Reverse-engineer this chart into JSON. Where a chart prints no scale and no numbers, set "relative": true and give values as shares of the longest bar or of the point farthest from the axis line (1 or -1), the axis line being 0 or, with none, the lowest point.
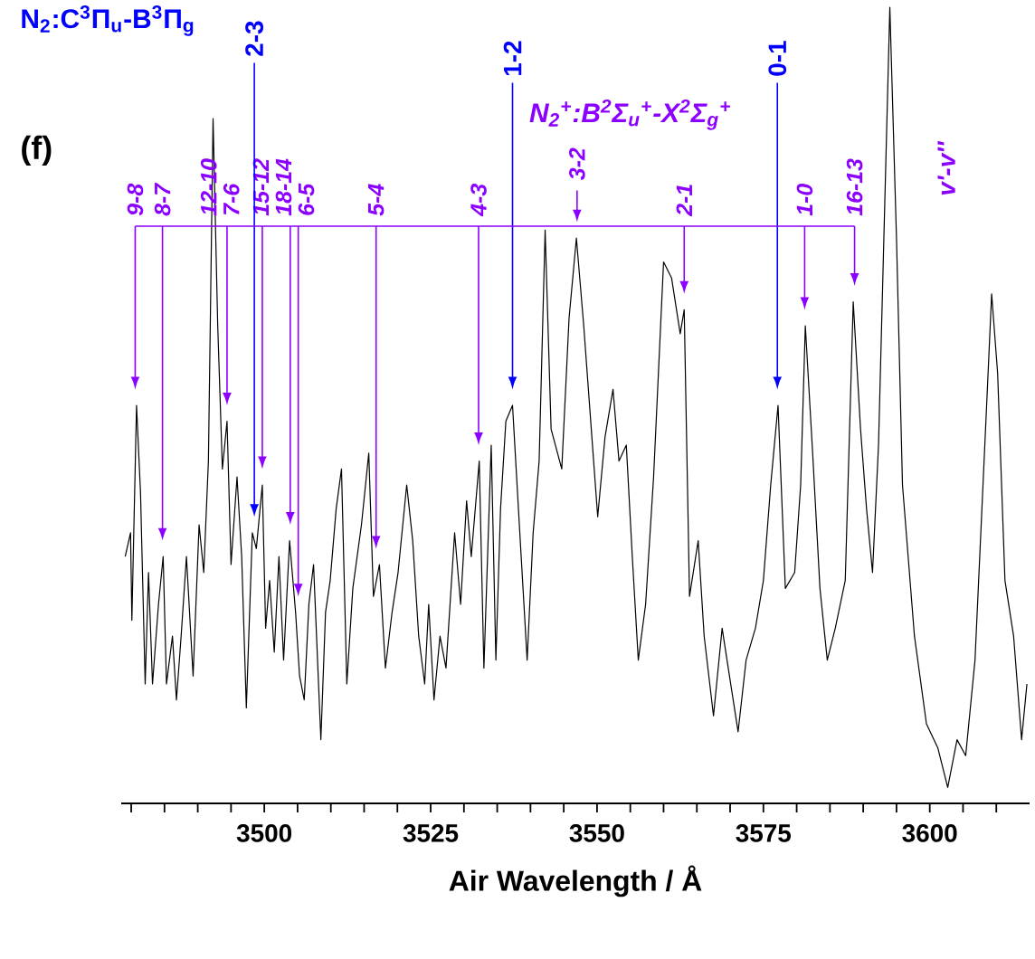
{
  "chart_data": {
    "type": "line",
    "relative": true,
    "xlabel": "Air Wavelength / Å",
    "xlim": [
      3478.5,
      3615
    ],
    "xticks": [
      {
        "value": 3480,
        "label": null
      },
      {
        "value": 3485,
        "label": null
      },
      {
        "value": 3490,
        "label": null
      },
      {
        "value": 3495,
        "label": null
      },
      3500,
      {
        "value": 3505,
        "label": null
      },
      {
        "value": 3510,
        "label": null
      },
      {
        "value": 3515,
        "label": null
      },
      {
        "value": 3520,
        "label": null
      },
      3525,
      {
        "value": 3530,
        "label": null
      },
      {
        "value": 3535,
        "label": null
      },
      {
        "value": 3540,
        "label": null
      },
      {
        "value": 3545,
        "label": null
      },
      3550,
      {
        "value": 3555,
        "label": null
      },
      {
        "value": 3560,
        "label": null
      },
      {
        "value": 3565,
        "label": null
      },
      {
        "value": 3570,
        "label": null
      },
      3575,
      {
        "value": 3580,
        "label": null
      },
      {
        "value": 3585,
        "label": null
      },
      {
        "value": 3590,
        "label": null
      },
      {
        "value": 3595,
        "label": null
      },
      3600,
      {
        "value": 3605,
        "label": null
      },
      {
        "value": 3610,
        "label": null
      }
    ],
    "x": [
      3479.1,
      3479.9,
      3480.1,
      3480.8,
      3481.4,
      3482.1,
      3482.6,
      3483.2,
      3484.1,
      3484.8,
      3485.3,
      3486.2,
      3486.8,
      3487.5,
      3488.3,
      3489.3,
      3490.2,
      3490.9,
      3491.6,
      3492.3,
      3493.0,
      3493.7,
      3494.4,
      3495.0,
      3495.9,
      3496.6,
      3497.3,
      3498.2,
      3498.8,
      3499.7,
      3500.2,
      3500.8,
      3501.5,
      3502.2,
      3502.9,
      3503.8,
      3504.7,
      3505.3,
      3506.0,
      3506.7,
      3507.4,
      3508.5,
      3509.2,
      3509.9,
      3510.8,
      3511.6,
      3512.4,
      3513.3,
      3514.6,
      3515.7,
      3516.4,
      3517.3,
      3518.2,
      3519.2,
      3520.1,
      3521.4,
      3522.3,
      3523.2,
      3524.1,
      3524.7,
      3525.5,
      3526.4,
      3527.3,
      3528.6,
      3529.5,
      3530.4,
      3531.1,
      3532.3,
      3533.0,
      3534.1,
      3534.8,
      3535.5,
      3536.3,
      3537.3,
      3538.6,
      3539.5,
      3540.4,
      3541.3,
      3542.2,
      3543.1,
      3544.7,
      3545.8,
      3546.9,
      3548.0,
      3550.1,
      3551.2,
      3552.4,
      3553.3,
      3554.4,
      3555.3,
      3556.2,
      3557.3,
      3558.5,
      3560.0,
      3561.2,
      3562.5,
      3563.1,
      3563.9,
      3565.2,
      3566.1,
      3567.5,
      3568.8,
      3569.9,
      3571.2,
      3572.4,
      3573.8,
      3575.0,
      3576.1,
      3577.2,
      3578.3,
      3579.7,
      3580.6,
      3581.3,
      3582.4,
      3583.5,
      3584.6,
      3585.8,
      3587.3,
      3588.5,
      3589.6,
      3590.5,
      3591.4,
      3592.3,
      3594.0,
      3595.0,
      3595.9,
      3597.7,
      3599.5,
      3601.2,
      3602.7,
      3604.1,
      3605.4,
      3606.8,
      3608.6,
      3609.3,
      3610.2,
      3611.3,
      3612.6,
      3613.8,
      3614.6
    ],
    "series": [
      {
        "color": "#000000",
        "values": [
          0.31,
          0.34,
          0.23,
          0.5,
          0.39,
          0.15,
          0.29,
          0.15,
          0.25,
          0.31,
          0.15,
          0.21,
          0.13,
          0.21,
          0.31,
          0.16,
          0.35,
          0.29,
          0.43,
          0.86,
          0.6,
          0.42,
          0.48,
          0.3,
          0.41,
          0.31,
          0.12,
          0.34,
          0.32,
          0.4,
          0.22,
          0.28,
          0.19,
          0.31,
          0.18,
          0.33,
          0.24,
          0.16,
          0.13,
          0.25,
          0.3,
          0.08,
          0.24,
          0.28,
          0.37,
          0.42,
          0.15,
          0.27,
          0.35,
          0.44,
          0.26,
          0.3,
          0.17,
          0.24,
          0.29,
          0.4,
          0.33,
          0.21,
          0.15,
          0.25,
          0.13,
          0.21,
          0.17,
          0.34,
          0.25,
          0.38,
          0.31,
          0.43,
          0.17,
          0.45,
          0.18,
          0.37,
          0.48,
          0.5,
          0.31,
          0.18,
          0.34,
          0.43,
          0.72,
          0.47,
          0.42,
          0.61,
          0.71,
          0.6,
          0.36,
          0.46,
          0.52,
          0.43,
          0.45,
          0.31,
          0.18,
          0.25,
          0.41,
          0.68,
          0.66,
          0.59,
          0.62,
          0.26,
          0.33,
          0.21,
          0.11,
          0.22,
          0.16,
          0.09,
          0.18,
          0.22,
          0.28,
          0.4,
          0.5,
          0.27,
          0.29,
          0.4,
          0.6,
          0.44,
          0.27,
          0.18,
          0.22,
          0.28,
          0.63,
          0.47,
          0.37,
          0.29,
          0.45,
          1.0,
          0.71,
          0.4,
          0.21,
          0.1,
          0.07,
          0.02,
          0.08,
          0.06,
          0.18,
          0.51,
          0.64,
          0.54,
          0.28,
          0.21,
          0.08,
          0.15
        ]
      }
    ],
    "annotations": [
      "(f)",
      "N$_{2}$:C$^{3}$Π$_{u}$-B$^{3}$Π$_{g}$",
      {
        "text": "2-3",
        "x": 3498.5
      },
      {
        "text": "1-2",
        "x": 3537.3
      },
      {
        "text": "0-1",
        "x": 3577.1
      },
      "N$_{2}$$^{+}$:B$^{2}$Σ$_{u}$$^{+}$-X$^{2}$Σ$_{g}$$^{+}$",
      {
        "text": "9-8",
        "x": 3480.6
      },
      {
        "text": "8-7",
        "x": 3484.7
      },
      {
        "text": "12-10",
        "x": 3492.3
      },
      {
        "text": "7-6",
        "x": 3494.4
      },
      {
        "text": "15-12",
        "x": 3499.7
      },
      {
        "text": "18-14",
        "x": 3503.9
      },
      {
        "text": "6-5",
        "x": 3505.1
      },
      {
        "text": "5-4",
        "x": 3516.8
      },
      {
        "text": "4-3",
        "x": 3532.2
      },
      {
        "text": "3-2",
        "x": 3547.0
      },
      {
        "text": "2-1",
        "x": 3563.1
      },
      {
        "text": "1-0",
        "x": 3581.2
      },
      {
        "text": "16-13",
        "x": 3588.7
      },
      "v'-v''"
    ]
  }
}
